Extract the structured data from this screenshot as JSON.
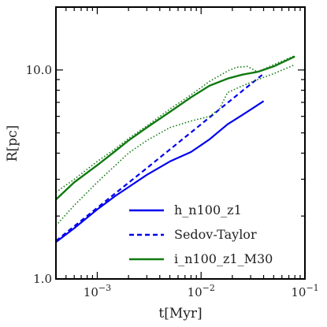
{
  "chart_data": {
    "type": "line",
    "title": "",
    "xlabel": "t[Myr]",
    "ylabel": "R[pc]",
    "xscale": "log",
    "yscale": "log",
    "xlim": [
      0.0004,
      0.1
    ],
    "ylim": [
      1.0,
      20.0
    ],
    "grid": false,
    "legend_position": "lower-right",
    "x_ticks": [
      {
        "value": 0.001,
        "base": "10",
        "exp": "−3"
      },
      {
        "value": 0.01,
        "base": "10",
        "exp": "−2"
      },
      {
        "value": 0.1,
        "base": "10",
        "exp": "−1"
      }
    ],
    "y_ticks": [
      {
        "value": 1.0,
        "label": "1.0"
      },
      {
        "value": 10.0,
        "label": "10.0"
      }
    ],
    "legend": [
      {
        "name": "h_n100_z1",
        "color": "#0000ee",
        "dash": "solid"
      },
      {
        "name": "Sedov-Taylor",
        "color": "#0000ee",
        "dash": "dashed"
      },
      {
        "name": "i_n100_z1_M30",
        "color": "#117a11",
        "dash": "solid"
      }
    ],
    "series": [
      {
        "name": "h_n100_z1",
        "color": "#0000ee",
        "dash": "solid",
        "width": 2.2,
        "x": [
          0.0004,
          0.0006,
          0.001,
          0.0015,
          0.002,
          0.003,
          0.005,
          0.008,
          0.012,
          0.018,
          0.025,
          0.032,
          0.04
        ],
        "y": [
          1.5,
          1.75,
          2.15,
          2.5,
          2.75,
          3.15,
          3.65,
          4.05,
          4.65,
          5.5,
          6.1,
          6.6,
          7.1
        ]
      },
      {
        "name": "Sedov-Taylor",
        "color": "#0000ee",
        "dash": "dashed",
        "width": 2.2,
        "x": [
          0.0004,
          0.001,
          0.003,
          0.01,
          0.04
        ],
        "y": [
          1.52,
          2.19,
          3.39,
          5.5,
          9.6
        ]
      },
      {
        "name": "i_n100_z1_M30",
        "color": "#117a11",
        "dash": "solid",
        "width": 2.4,
        "x": [
          0.0004,
          0.0006,
          0.001,
          0.0015,
          0.002,
          0.003,
          0.005,
          0.008,
          0.012,
          0.018,
          0.025,
          0.035,
          0.05,
          0.08
        ],
        "y": [
          2.4,
          2.9,
          3.5,
          4.1,
          4.6,
          5.3,
          6.3,
          7.4,
          8.4,
          9.1,
          9.5,
          9.8,
          10.4,
          11.6
        ]
      },
      {
        "name": "",
        "color": "#117a11",
        "dash": "dotted",
        "width": 1.6,
        "x": [
          0.0004,
          0.0006,
          0.001,
          0.0015,
          0.002,
          0.003,
          0.005,
          0.008,
          0.012,
          0.018,
          0.022,
          0.028,
          0.035,
          0.05,
          0.08
        ],
        "y": [
          2.6,
          3.0,
          3.65,
          4.2,
          4.7,
          5.4,
          6.5,
          7.6,
          8.8,
          9.9,
          10.3,
          10.4,
          9.8,
          10.6,
          11.7
        ]
      },
      {
        "name": "",
        "color": "#117a11",
        "dash": "dotted",
        "width": 1.6,
        "x": [
          0.0004,
          0.0006,
          0.001,
          0.0015,
          0.002,
          0.003,
          0.005,
          0.008,
          0.012,
          0.015,
          0.018,
          0.025,
          0.035,
          0.05,
          0.08
        ],
        "y": [
          1.8,
          2.25,
          2.9,
          3.5,
          4.0,
          4.6,
          5.3,
          5.7,
          6.0,
          6.5,
          7.8,
          8.4,
          9.0,
          9.6,
          10.6
        ]
      }
    ]
  }
}
